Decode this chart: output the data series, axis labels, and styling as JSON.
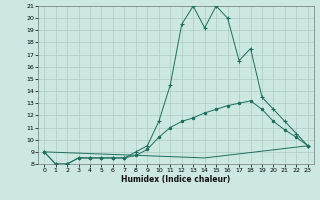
{
  "xlabel": "Humidex (Indice chaleur)",
  "xlim": [
    -0.5,
    23.5
  ],
  "ylim": [
    8,
    21
  ],
  "xticks": [
    0,
    1,
    2,
    3,
    4,
    5,
    6,
    7,
    8,
    9,
    10,
    11,
    12,
    13,
    14,
    15,
    16,
    17,
    18,
    19,
    20,
    21,
    22,
    23
  ],
  "yticks": [
    8,
    9,
    10,
    11,
    12,
    13,
    14,
    15,
    16,
    17,
    18,
    19,
    20,
    21
  ],
  "bg_color": "#cce8e0",
  "grid_color": "#aaccc4",
  "line_color": "#1e6e5e",
  "line1": {
    "x": [
      0,
      1,
      2,
      3,
      4,
      5,
      6,
      7,
      8,
      9,
      10,
      11,
      12,
      13,
      14,
      15,
      16,
      17,
      18,
      19,
      20,
      21,
      22,
      23
    ],
    "y": [
      9,
      8,
      8,
      8.5,
      8.5,
      8.5,
      8.5,
      8.5,
      9,
      9.5,
      11.5,
      14.5,
      19.5,
      21,
      19.2,
      21,
      20,
      16.5,
      17.5,
      13.5,
      12.5,
      11.5,
      10.5,
      9.5
    ]
  },
  "line2": {
    "x": [
      0,
      1,
      2,
      3,
      4,
      5,
      6,
      7,
      8,
      9,
      10,
      11,
      12,
      13,
      14,
      15,
      16,
      17,
      18,
      19,
      20,
      21,
      22,
      23
    ],
    "y": [
      9,
      8,
      8,
      8.5,
      8.5,
      8.5,
      8.5,
      8.5,
      8.7,
      9.2,
      10.2,
      11.0,
      11.5,
      11.8,
      12.2,
      12.5,
      12.8,
      13.0,
      13.2,
      12.5,
      11.5,
      10.8,
      10.2,
      9.5
    ]
  },
  "line3": {
    "x": [
      0,
      14,
      23
    ],
    "y": [
      9,
      8.5,
      9.5
    ]
  }
}
